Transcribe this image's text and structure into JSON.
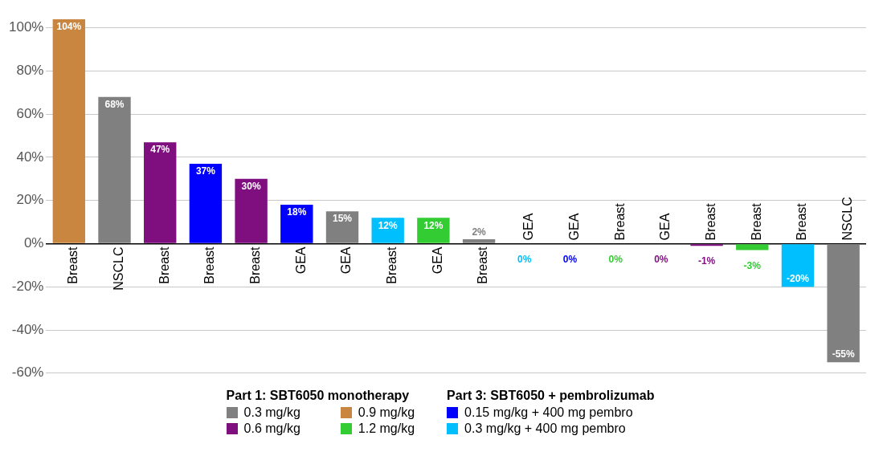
{
  "chart_data": {
    "type": "bar",
    "categories": [
      "Breast",
      "NSCLC",
      "Breast",
      "Breast",
      "Breast",
      "GEA",
      "GEA",
      "Breast",
      "GEA",
      "Breast",
      "GEA",
      "GEA",
      "Breast",
      "GEA",
      "Breast",
      "Breast",
      "Breast",
      "NSCLC"
    ],
    "series": [
      {
        "name": "0.3 mg/kg",
        "color": "#808080",
        "values": [
          null,
          68,
          null,
          null,
          null,
          null,
          15,
          null,
          null,
          2,
          null,
          null,
          null,
          null,
          null,
          null,
          null,
          -55
        ]
      },
      {
        "name": "0.6 mg/kg",
        "color": "#7f0f7f",
        "values": [
          null,
          null,
          47,
          null,
          30,
          null,
          null,
          null,
          null,
          null,
          null,
          null,
          null,
          0,
          -1,
          null,
          null,
          null
        ]
      },
      {
        "name": "0.9 mg/kg",
        "color": "#c98641",
        "values": [
          104,
          null,
          null,
          null,
          null,
          null,
          null,
          null,
          null,
          null,
          null,
          null,
          null,
          null,
          null,
          null,
          null,
          null
        ]
      },
      {
        "name": "1.2 mg/kg",
        "color": "#33cc33",
        "values": [
          null,
          null,
          null,
          null,
          null,
          null,
          null,
          null,
          12,
          null,
          null,
          null,
          0,
          null,
          null,
          -3,
          null,
          null
        ]
      },
      {
        "name": "0.15 mg/kg + 400 mg pembro",
        "color": "#0000ff",
        "values": [
          null,
          null,
          null,
          37,
          null,
          18,
          null,
          null,
          null,
          null,
          null,
          0,
          null,
          null,
          null,
          null,
          null,
          null
        ]
      },
      {
        "name": "0.3 mg/kg + 400 mg pembro",
        "color": "#00bfff",
        "values": [
          null,
          null,
          null,
          null,
          null,
          null,
          null,
          12,
          null,
          null,
          0,
          null,
          null,
          null,
          null,
          null,
          -20,
          null
        ]
      }
    ],
    "value_labels": [
      "104%",
      "68%",
      "47%",
      "37%",
      "30%",
      "18%",
      "15%",
      "12%",
      "12%",
      "2%",
      "0%",
      "0%",
      "0%",
      "0%",
      "-1%",
      "-3%",
      "-20%",
      "-55%"
    ],
    "ylim": [
      -60,
      105
    ],
    "yticks": [
      {
        "value": -60,
        "label": "-60%"
      },
      {
        "value": -40,
        "label": "-40%"
      },
      {
        "value": -20,
        "label": "-20%"
      },
      {
        "value": 0,
        "label": "0%"
      },
      {
        "value": 20,
        "label": "20%"
      },
      {
        "value": 40,
        "label": "40%"
      },
      {
        "value": 60,
        "label": "60%"
      },
      {
        "value": 80,
        "label": "80%"
      },
      {
        "value": 100,
        "label": "100%"
      }
    ],
    "grid": "y",
    "legend": "bottom",
    "annotations": [
      "Part 1: SBT6050 monotherapy",
      "Part 3: SBT6050 + pembrolizumab"
    ]
  }
}
